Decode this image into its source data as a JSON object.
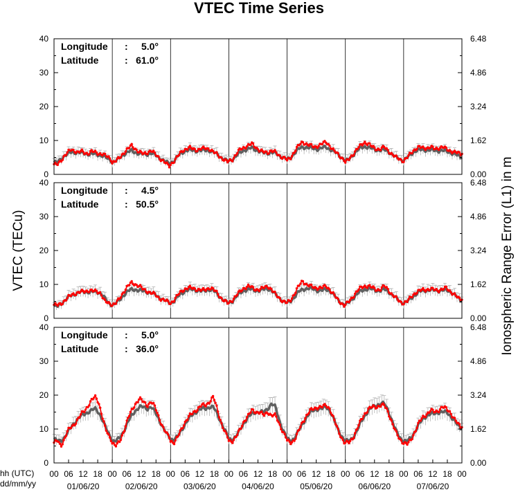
{
  "chart_data": {
    "type": "line",
    "title": "VTEC Time Series",
    "ylabel_left": "VTEC (TECu)",
    "ylabel_right": "Ionospheric Range Error (L1) in m",
    "xlabel_hour": "hh (UTC)",
    "xlabel_date": "dd/mm/yy",
    "hour_ticks": [
      "00",
      "06",
      "12",
      "18",
      "00",
      "06",
      "12",
      "18",
      "00",
      "06",
      "12",
      "18",
      "00",
      "06",
      "12",
      "18",
      "00",
      "06",
      "12",
      "18",
      "00",
      "06",
      "12",
      "18",
      "00",
      "06",
      "12",
      "18",
      "00"
    ],
    "date_labels": [
      "01/06/20",
      "02/06/20",
      "03/06/20",
      "04/06/20",
      "05/06/20",
      "06/06/20",
      "07/06/20"
    ],
    "ylim_left": [
      0,
      40
    ],
    "ylim_right": [
      0,
      6.48
    ],
    "left_ticks": [
      "0",
      "10",
      "20",
      "30",
      "40"
    ],
    "right_ticks": [
      "0.00",
      "1.62",
      "3.24",
      "4.86",
      "6.48"
    ],
    "x_hour_range": [
      0,
      168
    ],
    "colors": {
      "observed": "#ff0000",
      "reference": "#606060",
      "errorbar": "#a8a8a8",
      "day_divider": "#000000"
    },
    "panels": [
      {
        "longitude_label": "Longitude",
        "longitude_value": "5.0°",
        "latitude_label": "Latitude",
        "latitude_value": "61.0°",
        "observed_daily": [
          [
            3,
            2.8,
            4,
            5.5,
            6.5,
            7.2,
            7,
            6.5,
            6.8,
            6.3,
            6.2,
            6.8,
            6.5,
            6.2,
            6,
            5.5,
            5,
            4.2
          ],
          [
            3.5,
            4,
            5,
            6.5,
            7.5,
            8.5,
            7.5,
            6.5,
            6,
            6.5,
            7,
            6,
            5,
            4,
            3,
            2.2
          ],
          [
            3,
            4,
            5.5,
            7,
            7.5,
            7.8,
            7.5,
            7.2,
            7.5,
            7.8,
            7.5,
            6.5,
            6,
            5,
            4,
            3.5
          ],
          [
            4,
            4.5,
            6,
            7.5,
            8,
            8.5,
            9,
            8,
            7,
            6.5,
            6.5,
            7,
            6.5,
            5.5,
            5,
            4.5
          ],
          [
            4,
            5,
            7,
            8.5,
            9.5,
            9,
            8.5,
            8,
            8.5,
            9,
            9.5,
            8.5,
            7,
            6,
            5,
            4
          ],
          [
            3.5,
            4.5,
            6,
            7.5,
            8.5,
            9.5,
            9,
            8,
            7.5,
            7.5,
            8,
            7,
            6,
            5,
            4.5,
            4
          ],
          [
            4,
            5,
            6.5,
            7.5,
            8,
            7.8,
            7.8,
            8,
            7.5,
            7.8,
            8,
            7.5,
            7,
            6.5,
            6.3,
            6
          ]
        ],
        "reference_daily": [
          [
            3.5,
            3.5,
            4.5,
            5.5,
            6,
            6.5,
            6.5,
            6.5,
            6.3,
            6.2,
            6,
            6,
            6,
            5.8,
            5.5,
            5,
            4.5,
            4
          ],
          [
            3.5,
            4,
            5,
            6,
            6.5,
            7,
            6.5,
            6,
            6,
            6,
            6.2,
            5.8,
            5,
            4.2,
            3.5,
            3
          ],
          [
            3.5,
            4,
            5.5,
            6.5,
            7,
            7.2,
            7,
            7,
            7,
            7.2,
            7,
            6.5,
            6,
            5,
            4.2,
            3.8
          ],
          [
            4,
            4.5,
            5.5,
            6.5,
            7.2,
            7.5,
            7.8,
            7.2,
            6.8,
            6.3,
            6.3,
            6.5,
            6.3,
            5.5,
            5,
            4.5
          ],
          [
            4.2,
            5,
            6.5,
            7.5,
            8,
            8,
            7.8,
            7.5,
            7.5,
            7.8,
            8,
            7.5,
            6.8,
            6,
            5,
            4.2
          ],
          [
            3.8,
            4.5,
            5.8,
            7,
            7.8,
            8.2,
            8,
            7.5,
            7.2,
            7.2,
            7.2,
            6.8,
            6,
            5,
            4.5,
            4
          ],
          [
            4.2,
            5,
            6,
            7,
            7.2,
            7.2,
            7.2,
            7.2,
            7,
            7,
            7,
            6.8,
            6.5,
            6,
            5.5,
            5
          ]
        ]
      },
      {
        "longitude_label": "Longitude",
        "longitude_value": "4.5°",
        "latitude_label": "Latitude",
        "latitude_value": "50.5°",
        "observed_daily": [
          [
            4,
            3.8,
            4.5,
            5.5,
            6.5,
            7.2,
            7.5,
            7.8,
            8,
            8.2,
            8,
            8,
            7.5,
            5,
            4.5,
            4.2
          ],
          [
            4,
            4.5,
            6,
            8,
            9.5,
            10.5,
            10,
            9.5,
            8.5,
            8,
            7.5,
            7,
            6,
            5.5,
            5,
            4.5
          ],
          [
            4.5,
            5.5,
            7,
            8.2,
            8.8,
            9,
            8.8,
            8.5,
            8.2,
            8.5,
            9,
            8.5,
            7.5,
            6,
            5,
            4.2
          ],
          [
            4.5,
            5.5,
            6.8,
            8,
            9,
            9.5,
            9,
            8.5,
            8.5,
            9,
            9.5,
            8.5,
            7,
            6,
            5,
            4.5
          ],
          [
            4.5,
            5.5,
            7.5,
            9.5,
            11,
            10,
            9.5,
            9,
            9,
            9,
            9.5,
            8.5,
            7,
            5.5,
            4.5,
            3.5
          ],
          [
            4,
            5,
            6.5,
            8,
            9,
            9.5,
            9.5,
            9,
            8.5,
            8.5,
            9.5,
            8.5,
            7,
            6,
            5,
            4.5
          ],
          [
            4.5,
            5,
            6.5,
            7.5,
            8,
            8.5,
            8.5,
            8.5,
            8.5,
            8.3,
            8.5,
            9,
            8,
            7,
            6,
            5.5
          ]
        ],
        "reference_daily": [
          [
            3.5,
            3.5,
            4.5,
            5.5,
            6.5,
            7,
            7.5,
            7.8,
            7.8,
            7.8,
            7.8,
            7.8,
            7.5,
            6,
            4.5,
            4
          ],
          [
            4,
            4.5,
            5.5,
            7,
            8,
            8.5,
            8.5,
            8.2,
            8,
            7.8,
            7.5,
            7,
            6.2,
            5.5,
            5,
            4.5
          ],
          [
            4.5,
            5.2,
            6.5,
            7.5,
            8.2,
            8.5,
            8.5,
            8.2,
            8,
            8.2,
            8.5,
            8.2,
            7.2,
            6,
            5,
            4.5
          ],
          [
            4.5,
            5.2,
            6.5,
            7.5,
            8.3,
            8.5,
            8.5,
            8.2,
            8.2,
            8.5,
            8.8,
            8.2,
            7,
            6,
            5,
            4.5
          ],
          [
            4.5,
            5.2,
            6.5,
            7.8,
            8.5,
            8.8,
            8.8,
            8.5,
            8.2,
            8.2,
            8.5,
            8.2,
            7,
            5.5,
            4.5,
            4
          ],
          [
            4,
            4.8,
            6,
            7.2,
            8,
            8.5,
            8.8,
            8.5,
            8.2,
            8.2,
            8.5,
            8,
            7,
            6,
            5,
            4.5
          ],
          [
            4.5,
            5,
            6,
            7,
            7.8,
            8.2,
            8.3,
            8.3,
            8.3,
            8.2,
            8.2,
            8.3,
            8,
            7,
            6,
            5
          ]
        ]
      },
      {
        "longitude_label": "Longitude",
        "longitude_value": "5.0°",
        "latitude_label": "Latitude",
        "latitude_value": "36.0°",
        "observed_daily": [
          [
            6,
            6.5,
            5,
            7,
            9.5,
            10.5,
            11.5,
            13,
            14.5,
            15.5,
            17,
            18.5,
            19.5,
            18,
            14,
            10,
            8,
            6.5
          ],
          [
            6,
            5,
            6.5,
            9.5,
            13,
            15.5,
            17.5,
            19,
            18,
            17,
            18,
            16.5,
            13.5,
            10.5,
            8.5,
            7.5
          ],
          [
            6.5,
            6,
            8,
            10.5,
            12.5,
            14,
            15,
            16,
            17,
            17,
            18,
            19.5,
            16,
            12,
            9,
            7
          ],
          [
            6.5,
            6.5,
            8,
            10,
            12.5,
            14,
            15.5,
            15,
            15,
            14,
            15,
            14,
            14,
            11.5,
            9,
            7
          ],
          [
            6.5,
            6,
            7,
            9.5,
            12,
            14,
            15.5,
            16,
            16.5,
            16.5,
            17,
            16,
            13,
            10,
            7.5,
            5.5
          ],
          [
            6,
            6,
            7.5,
            10,
            12.5,
            14.5,
            16,
            16.5,
            16.5,
            17,
            17,
            15,
            12,
            9,
            7,
            6
          ],
          [
            6,
            5.5,
            7,
            9.5,
            12,
            13.5,
            14.5,
            15.5,
            15,
            15.5,
            16.5,
            16,
            15,
            13,
            11.5,
            10.5
          ]
        ],
        "reference_daily": [
          [
            7,
            6.5,
            6.5,
            7.5,
            9,
            10.5,
            12,
            13,
            14,
            14.5,
            15,
            15.5,
            16,
            15,
            13,
            10.5,
            8.5,
            7
          ],
          [
            6.5,
            6.5,
            7.5,
            9.5,
            12,
            14,
            15.5,
            16.5,
            16.5,
            16,
            16.5,
            15,
            13,
            10.5,
            8.5,
            7.5
          ],
          [
            7,
            7,
            8,
            10,
            12,
            13.5,
            14.5,
            15.5,
            16,
            16,
            16.5,
            16.5,
            14.5,
            12,
            9.5,
            7.5
          ],
          [
            7,
            7,
            8,
            10,
            12,
            13.5,
            14.5,
            15,
            15,
            15,
            16,
            17.5,
            16.5,
            12.5,
            9.5,
            7.5
          ],
          [
            7,
            6.5,
            7.5,
            9.5,
            11.5,
            13.5,
            15,
            15.5,
            16,
            16,
            16.5,
            15.5,
            13,
            10,
            8,
            6.5
          ],
          [
            6.5,
            6.5,
            7.5,
            9.5,
            12,
            14,
            15.5,
            16.5,
            17,
            17.5,
            17.5,
            15.5,
            12.5,
            9.5,
            7.5,
            6.5
          ],
          [
            6.5,
            6.5,
            7.5,
            9.5,
            11.5,
            13,
            14,
            14.5,
            14.5,
            15,
            15,
            15,
            14,
            12.5,
            11,
            10
          ]
        ]
      }
    ]
  }
}
